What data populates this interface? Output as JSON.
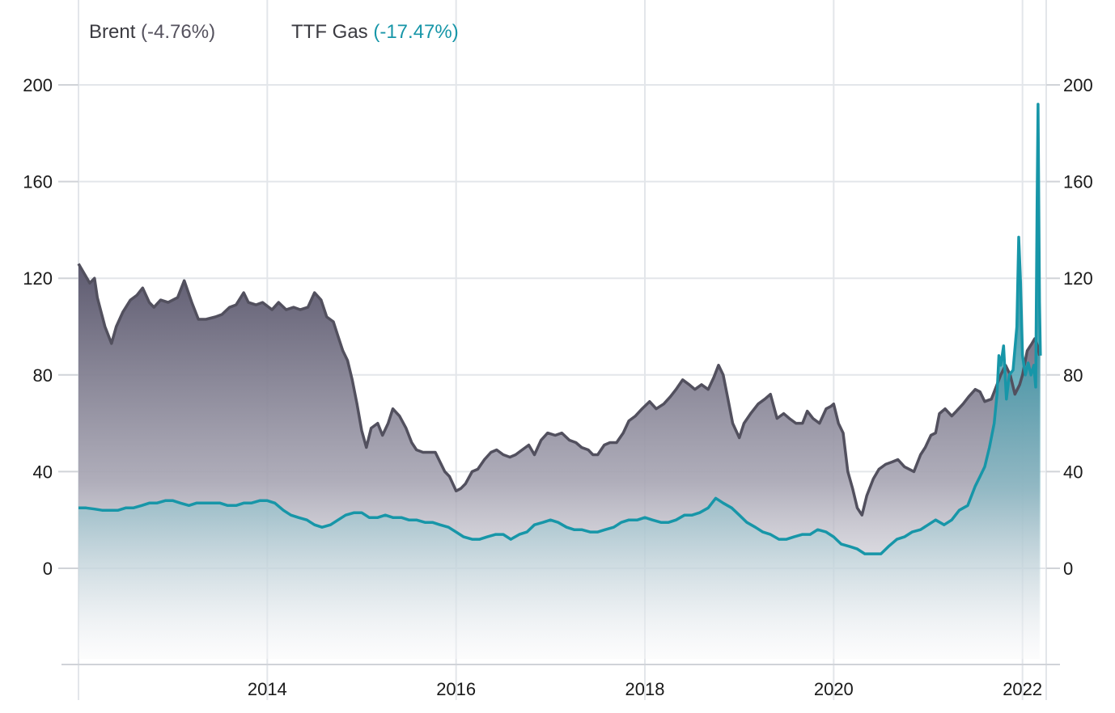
{
  "legend": {
    "brent_name": "Brent",
    "brent_change": "(-4.76%)",
    "ttf_name": "TTF Gas",
    "ttf_change": "(-17.47%)"
  },
  "colors": {
    "brent_line": "#52505e",
    "brent_fill": "#6e6b80",
    "ttf_line": "#1796a8",
    "ttf_fill": "#2e93a5",
    "grid": "#e3e6ea"
  },
  "chart_data": {
    "type": "area",
    "x_range": [
      2012.0,
      2022.2
    ],
    "ylim": [
      -40,
      200
    ],
    "y_ticks": [
      0,
      40,
      80,
      120,
      160,
      200
    ],
    "x_ticks": [
      {
        "label": "2014",
        "value": 2014
      },
      {
        "label": "2016",
        "value": 2016
      },
      {
        "label": "2018",
        "value": 2018
      },
      {
        "label": "2020",
        "value": 2020
      },
      {
        "label": "2022",
        "value": 2022
      }
    ],
    "grid": true,
    "legend_position": "top-left",
    "series": [
      {
        "name": "Brent",
        "change": "-4.76%",
        "points": [
          [
            2012.0,
            126
          ],
          [
            2012.06,
            122
          ],
          [
            2012.12,
            118
          ],
          [
            2012.17,
            120
          ],
          [
            2012.2,
            112
          ],
          [
            2012.28,
            100
          ],
          [
            2012.35,
            93
          ],
          [
            2012.4,
            100
          ],
          [
            2012.47,
            106
          ],
          [
            2012.55,
            111
          ],
          [
            2012.62,
            113
          ],
          [
            2012.68,
            116
          ],
          [
            2012.75,
            110
          ],
          [
            2012.8,
            108
          ],
          [
            2012.87,
            111
          ],
          [
            2012.95,
            110
          ],
          [
            2013.05,
            112
          ],
          [
            2013.12,
            119
          ],
          [
            2013.2,
            110
          ],
          [
            2013.27,
            103
          ],
          [
            2013.35,
            103
          ],
          [
            2013.45,
            104
          ],
          [
            2013.52,
            105
          ],
          [
            2013.6,
            108
          ],
          [
            2013.67,
            109
          ],
          [
            2013.75,
            114
          ],
          [
            2013.8,
            110
          ],
          [
            2013.88,
            109
          ],
          [
            2013.95,
            110
          ],
          [
            2014.05,
            107
          ],
          [
            2014.12,
            110
          ],
          [
            2014.2,
            107
          ],
          [
            2014.28,
            108
          ],
          [
            2014.35,
            107
          ],
          [
            2014.43,
            108
          ],
          [
            2014.5,
            114
          ],
          [
            2014.57,
            111
          ],
          [
            2014.63,
            104
          ],
          [
            2014.7,
            102
          ],
          [
            2014.75,
            96
          ],
          [
            2014.8,
            90
          ],
          [
            2014.85,
            86
          ],
          [
            2014.9,
            78
          ],
          [
            2014.95,
            68
          ],
          [
            2015.0,
            57
          ],
          [
            2015.05,
            50
          ],
          [
            2015.1,
            58
          ],
          [
            2015.17,
            60
          ],
          [
            2015.22,
            55
          ],
          [
            2015.28,
            60
          ],
          [
            2015.33,
            66
          ],
          [
            2015.4,
            63
          ],
          [
            2015.47,
            58
          ],
          [
            2015.53,
            52
          ],
          [
            2015.58,
            49
          ],
          [
            2015.65,
            48
          ],
          [
            2015.72,
            48
          ],
          [
            2015.78,
            48
          ],
          [
            2015.83,
            44
          ],
          [
            2015.88,
            40
          ],
          [
            2015.93,
            38
          ],
          [
            2016.0,
            32
          ],
          [
            2016.05,
            33
          ],
          [
            2016.1,
            35
          ],
          [
            2016.17,
            40
          ],
          [
            2016.23,
            41
          ],
          [
            2016.3,
            45
          ],
          [
            2016.37,
            48
          ],
          [
            2016.43,
            49
          ],
          [
            2016.5,
            47
          ],
          [
            2016.57,
            46
          ],
          [
            2016.63,
            47
          ],
          [
            2016.7,
            49
          ],
          [
            2016.77,
            51
          ],
          [
            2016.83,
            47
          ],
          [
            2016.9,
            53
          ],
          [
            2016.97,
            56
          ],
          [
            2017.05,
            55
          ],
          [
            2017.12,
            56
          ],
          [
            2017.2,
            53
          ],
          [
            2017.27,
            52
          ],
          [
            2017.33,
            50
          ],
          [
            2017.4,
            49
          ],
          [
            2017.45,
            47
          ],
          [
            2017.5,
            47
          ],
          [
            2017.57,
            51
          ],
          [
            2017.63,
            52
          ],
          [
            2017.7,
            52
          ],
          [
            2017.77,
            56
          ],
          [
            2017.83,
            61
          ],
          [
            2017.9,
            63
          ],
          [
            2017.97,
            66
          ],
          [
            2018.05,
            69
          ],
          [
            2018.12,
            66
          ],
          [
            2018.2,
            68
          ],
          [
            2018.27,
            71
          ],
          [
            2018.33,
            74
          ],
          [
            2018.4,
            78
          ],
          [
            2018.47,
            76
          ],
          [
            2018.53,
            74
          ],
          [
            2018.6,
            76
          ],
          [
            2018.67,
            74
          ],
          [
            2018.73,
            79
          ],
          [
            2018.78,
            84
          ],
          [
            2018.83,
            80
          ],
          [
            2018.88,
            70
          ],
          [
            2018.93,
            60
          ],
          [
            2019.0,
            54
          ],
          [
            2019.05,
            60
          ],
          [
            2019.12,
            64
          ],
          [
            2019.2,
            68
          ],
          [
            2019.27,
            70
          ],
          [
            2019.33,
            72
          ],
          [
            2019.4,
            62
          ],
          [
            2019.47,
            64
          ],
          [
            2019.53,
            62
          ],
          [
            2019.6,
            60
          ],
          [
            2019.67,
            60
          ],
          [
            2019.72,
            65
          ],
          [
            2019.78,
            62
          ],
          [
            2019.85,
            60
          ],
          [
            2019.92,
            66
          ],
          [
            2019.97,
            67
          ],
          [
            2020.0,
            68
          ],
          [
            2020.05,
            60
          ],
          [
            2020.1,
            56
          ],
          [
            2020.15,
            40
          ],
          [
            2020.2,
            33
          ],
          [
            2020.25,
            25
          ],
          [
            2020.3,
            22
          ],
          [
            2020.35,
            30
          ],
          [
            2020.42,
            37
          ],
          [
            2020.48,
            41
          ],
          [
            2020.55,
            43
          ],
          [
            2020.62,
            44
          ],
          [
            2020.68,
            45
          ],
          [
            2020.75,
            42
          ],
          [
            2020.8,
            41
          ],
          [
            2020.85,
            40
          ],
          [
            2020.92,
            47
          ],
          [
            2020.97,
            50
          ],
          [
            2021.03,
            55
          ],
          [
            2021.08,
            56
          ],
          [
            2021.12,
            64
          ],
          [
            2021.18,
            66
          ],
          [
            2021.25,
            63
          ],
          [
            2021.3,
            65
          ],
          [
            2021.37,
            68
          ],
          [
            2021.43,
            71
          ],
          [
            2021.5,
            74
          ],
          [
            2021.55,
            73
          ],
          [
            2021.6,
            69
          ],
          [
            2021.67,
            70
          ],
          [
            2021.72,
            75
          ],
          [
            2021.77,
            80
          ],
          [
            2021.82,
            84
          ],
          [
            2021.87,
            80
          ],
          [
            2021.92,
            72
          ],
          [
            2021.97,
            76
          ],
          [
            2022.0,
            80
          ],
          [
            2022.05,
            90
          ],
          [
            2022.1,
            93
          ],
          [
            2022.13,
            95
          ],
          [
            2022.16,
            92
          ],
          [
            2022.18,
            88
          ]
        ]
      },
      {
        "name": "TTF Gas",
        "change": "-17.47%",
        "points": [
          [
            2012.0,
            25
          ],
          [
            2012.08,
            25
          ],
          [
            2012.17,
            24.5
          ],
          [
            2012.25,
            24
          ],
          [
            2012.33,
            24
          ],
          [
            2012.42,
            24
          ],
          [
            2012.5,
            25
          ],
          [
            2012.58,
            25
          ],
          [
            2012.67,
            26
          ],
          [
            2012.75,
            27
          ],
          [
            2012.83,
            27
          ],
          [
            2012.92,
            28
          ],
          [
            2013.0,
            28
          ],
          [
            2013.08,
            27
          ],
          [
            2013.17,
            26
          ],
          [
            2013.25,
            27
          ],
          [
            2013.33,
            27
          ],
          [
            2013.42,
            27
          ],
          [
            2013.5,
            27
          ],
          [
            2013.58,
            26
          ],
          [
            2013.67,
            26
          ],
          [
            2013.75,
            27
          ],
          [
            2013.83,
            27
          ],
          [
            2013.92,
            28
          ],
          [
            2014.0,
            28
          ],
          [
            2014.08,
            27
          ],
          [
            2014.17,
            24
          ],
          [
            2014.25,
            22
          ],
          [
            2014.33,
            21
          ],
          [
            2014.42,
            20
          ],
          [
            2014.5,
            18
          ],
          [
            2014.58,
            17
          ],
          [
            2014.67,
            18
          ],
          [
            2014.75,
            20
          ],
          [
            2014.83,
            22
          ],
          [
            2014.92,
            23
          ],
          [
            2015.0,
            23
          ],
          [
            2015.08,
            21
          ],
          [
            2015.17,
            21
          ],
          [
            2015.25,
            22
          ],
          [
            2015.33,
            21
          ],
          [
            2015.42,
            21
          ],
          [
            2015.5,
            20
          ],
          [
            2015.58,
            20
          ],
          [
            2015.67,
            19
          ],
          [
            2015.75,
            19
          ],
          [
            2015.83,
            18
          ],
          [
            2015.92,
            17
          ],
          [
            2016.0,
            15
          ],
          [
            2016.08,
            13
          ],
          [
            2016.17,
            12
          ],
          [
            2016.25,
            12
          ],
          [
            2016.33,
            13
          ],
          [
            2016.42,
            14
          ],
          [
            2016.5,
            14
          ],
          [
            2016.58,
            12
          ],
          [
            2016.67,
            14
          ],
          [
            2016.75,
            15
          ],
          [
            2016.83,
            18
          ],
          [
            2016.92,
            19
          ],
          [
            2017.0,
            20
          ],
          [
            2017.08,
            19
          ],
          [
            2017.17,
            17
          ],
          [
            2017.25,
            16
          ],
          [
            2017.33,
            16
          ],
          [
            2017.42,
            15
          ],
          [
            2017.5,
            15
          ],
          [
            2017.58,
            16
          ],
          [
            2017.67,
            17
          ],
          [
            2017.75,
            19
          ],
          [
            2017.83,
            20
          ],
          [
            2017.92,
            20
          ],
          [
            2018.0,
            21
          ],
          [
            2018.08,
            20
          ],
          [
            2018.17,
            19
          ],
          [
            2018.25,
            19
          ],
          [
            2018.33,
            20
          ],
          [
            2018.42,
            22
          ],
          [
            2018.5,
            22
          ],
          [
            2018.58,
            23
          ],
          [
            2018.67,
            25
          ],
          [
            2018.75,
            29
          ],
          [
            2018.83,
            27
          ],
          [
            2018.92,
            25
          ],
          [
            2019.0,
            22
          ],
          [
            2019.08,
            19
          ],
          [
            2019.17,
            17
          ],
          [
            2019.25,
            15
          ],
          [
            2019.33,
            14
          ],
          [
            2019.42,
            12
          ],
          [
            2019.5,
            12
          ],
          [
            2019.58,
            13
          ],
          [
            2019.67,
            14
          ],
          [
            2019.75,
            14
          ],
          [
            2019.83,
            16
          ],
          [
            2019.92,
            15
          ],
          [
            2020.0,
            13
          ],
          [
            2020.08,
            10
          ],
          [
            2020.17,
            9
          ],
          [
            2020.25,
            8
          ],
          [
            2020.33,
            6
          ],
          [
            2020.42,
            6
          ],
          [
            2020.5,
            6
          ],
          [
            2020.58,
            9
          ],
          [
            2020.67,
            12
          ],
          [
            2020.75,
            13
          ],
          [
            2020.83,
            15
          ],
          [
            2020.92,
            16
          ],
          [
            2021.0,
            18
          ],
          [
            2021.08,
            20
          ],
          [
            2021.17,
            18
          ],
          [
            2021.25,
            20
          ],
          [
            2021.33,
            24
          ],
          [
            2021.42,
            26
          ],
          [
            2021.5,
            34
          ],
          [
            2021.55,
            38
          ],
          [
            2021.6,
            42
          ],
          [
            2021.65,
            50
          ],
          [
            2021.7,
            60
          ],
          [
            2021.73,
            72
          ],
          [
            2021.75,
            88
          ],
          [
            2021.77,
            84
          ],
          [
            2021.8,
            92
          ],
          [
            2021.83,
            70
          ],
          [
            2021.86,
            80
          ],
          [
            2021.9,
            82
          ],
          [
            2021.94,
            100
          ],
          [
            2021.96,
            137
          ],
          [
            2021.98,
            118
          ],
          [
            2022.0,
            88
          ],
          [
            2022.03,
            80
          ],
          [
            2022.06,
            85
          ],
          [
            2022.09,
            80
          ],
          [
            2022.12,
            84
          ],
          [
            2022.14,
            75
          ],
          [
            2022.155,
            150
          ],
          [
            2022.165,
            192
          ],
          [
            2022.18,
            110
          ],
          [
            2022.19,
            88
          ]
        ]
      }
    ]
  }
}
